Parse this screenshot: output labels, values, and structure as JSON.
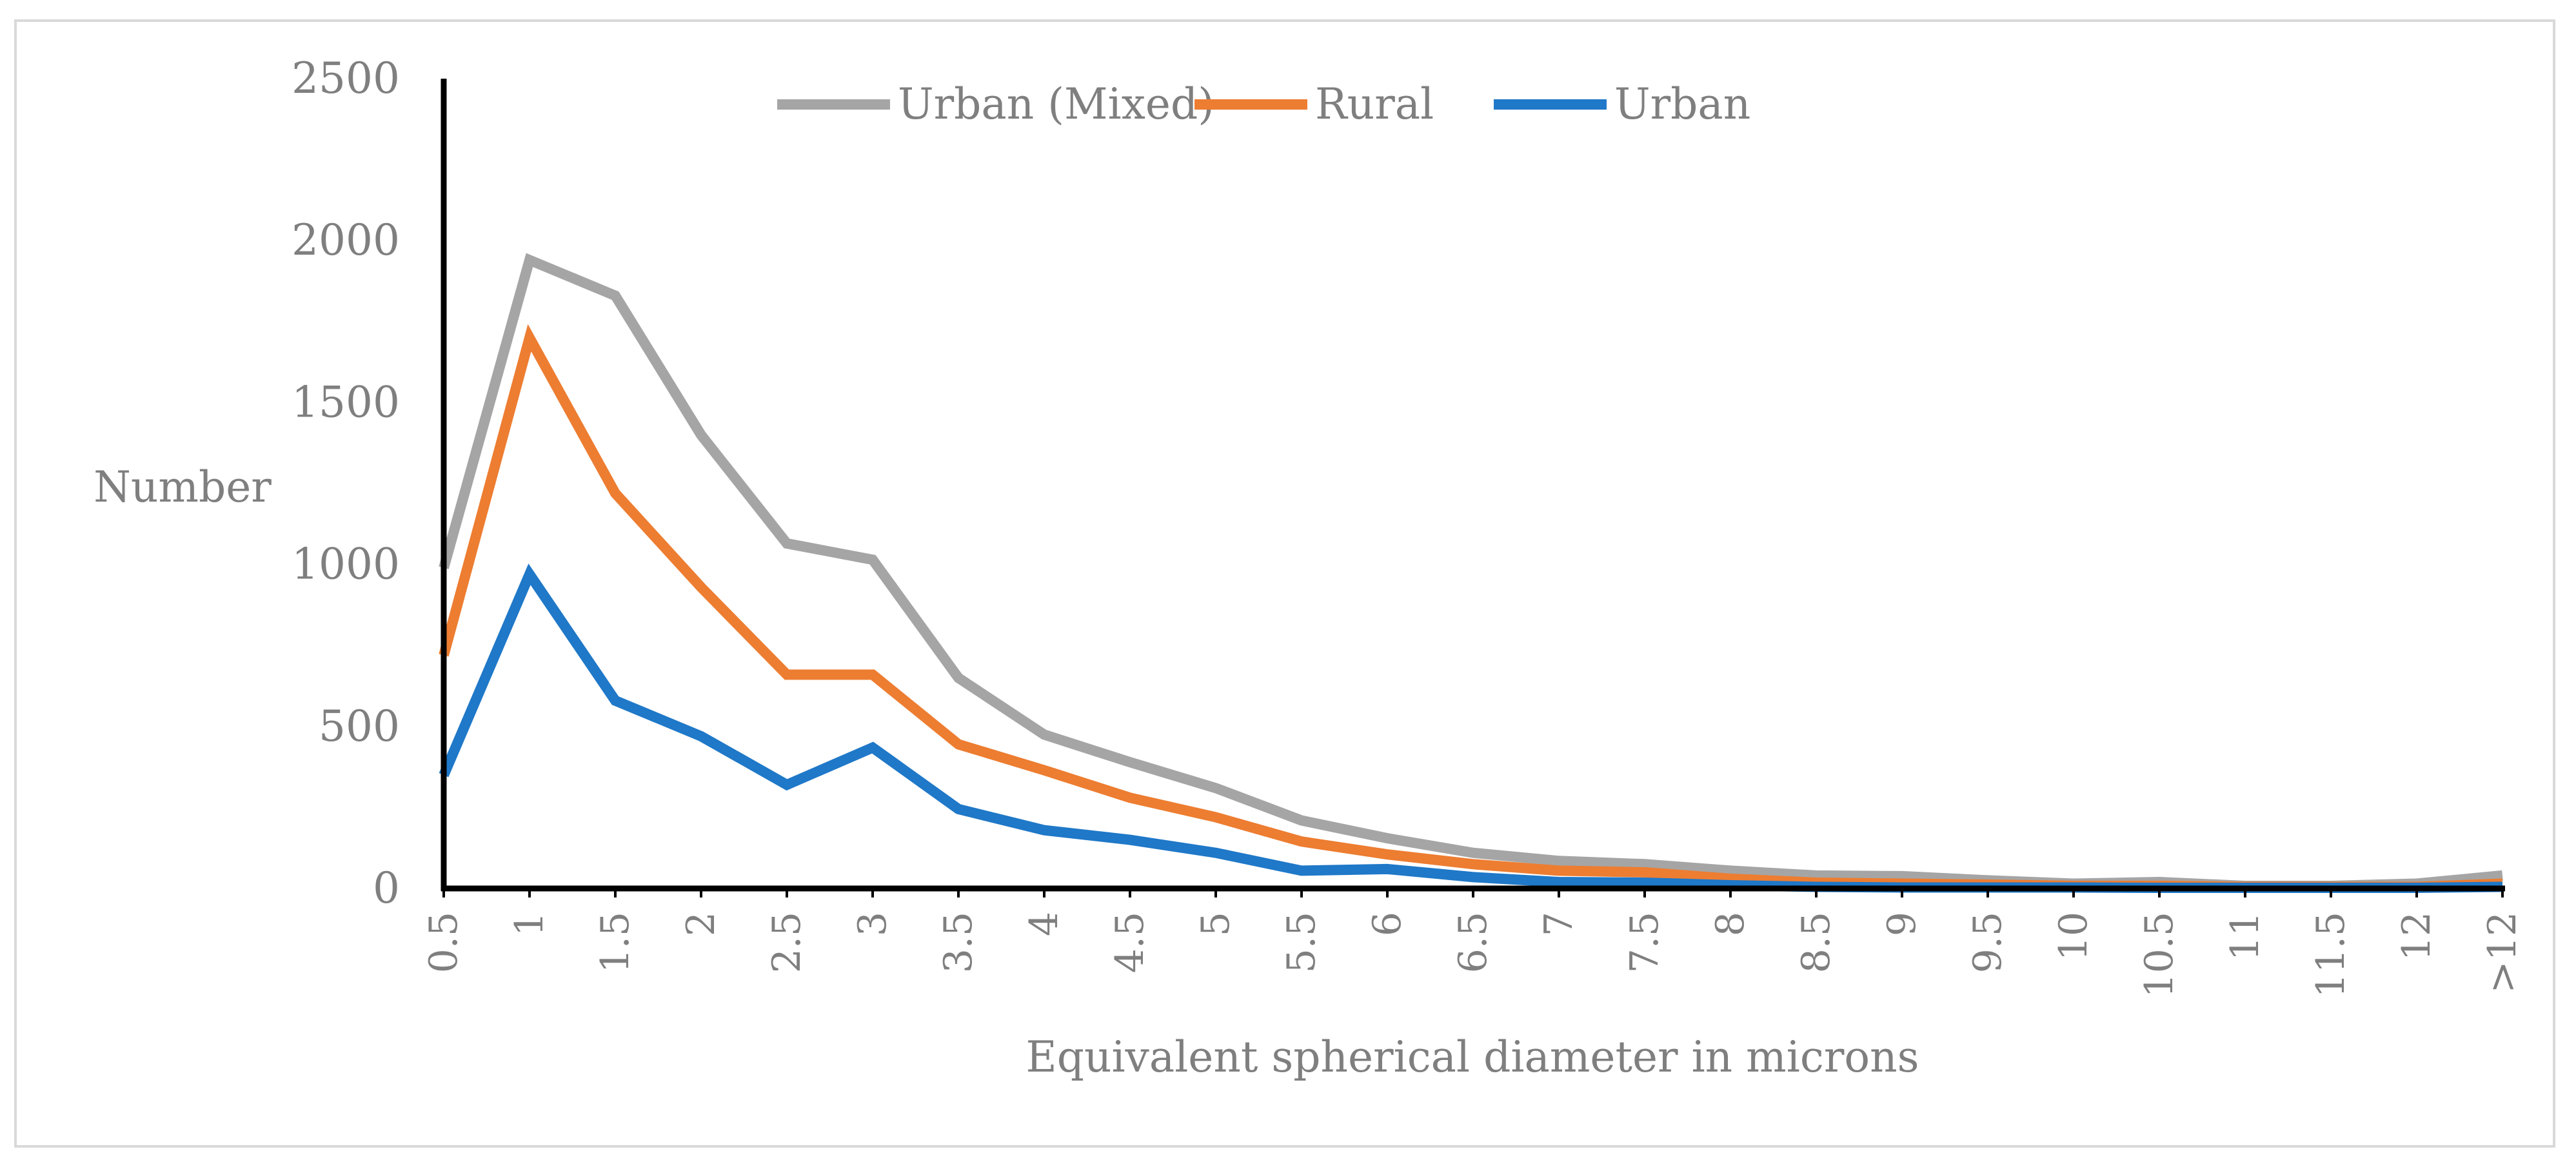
{
  "chart_data": {
    "type": "line",
    "title": "",
    "xlabel": "Equivalent spherical diameter in microns",
    "ylabel": "Number",
    "ylim": [
      0,
      2500
    ],
    "yticks": [
      "0",
      "500",
      "1000",
      "1500",
      "2000",
      "2500"
    ],
    "categories": [
      "0.5",
      "1",
      "1.5",
      "2",
      "2.5",
      "3",
      "3.5",
      "4",
      "4.5",
      "5",
      "5.5",
      "6",
      "6.5",
      "7",
      "7.5",
      "8",
      "8.5",
      "9",
      "9.5",
      "10",
      "10.5",
      "11",
      "11.5",
      "12",
      ">12"
    ],
    "legend_position": "top-center",
    "series": [
      {
        "name": "Urban (Mixed)",
        "color": "#a5a5a5",
        "values": [
          990,
          1940,
          1830,
          1400,
          1065,
          1015,
          650,
          475,
          390,
          310,
          210,
          155,
          110,
          85,
          75,
          55,
          40,
          38,
          25,
          15,
          20,
          8,
          8,
          15,
          40
        ]
      },
      {
        "name": "Rural",
        "color": "#ed7d31",
        "values": [
          720,
          1700,
          1220,
          930,
          660,
          660,
          445,
          365,
          280,
          220,
          145,
          105,
          75,
          55,
          50,
          30,
          18,
          15,
          12,
          8,
          8,
          5,
          5,
          5,
          15
        ]
      },
      {
        "name": "Urban",
        "color": "#1f78c8",
        "values": [
          350,
          970,
          580,
          470,
          320,
          435,
          245,
          180,
          150,
          110,
          55,
          60,
          35,
          20,
          18,
          10,
          5,
          3,
          3,
          3,
          2,
          2,
          2,
          2,
          5
        ]
      }
    ]
  }
}
